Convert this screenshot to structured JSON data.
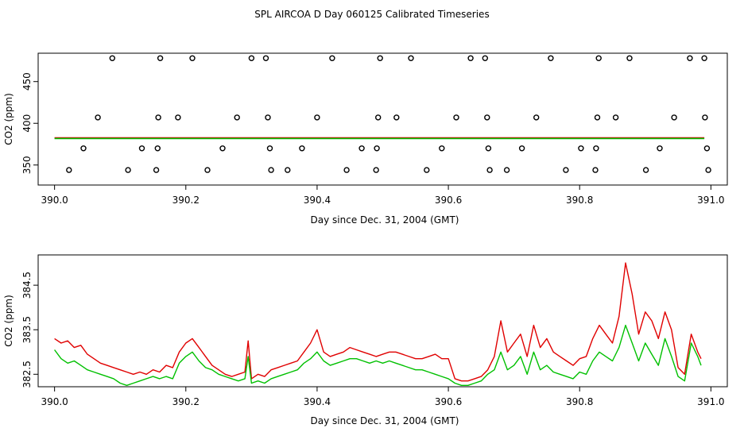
{
  "title": "SPL AIRCOA D  Day 060125  Calibrated Timeseries",
  "colors": {
    "red": "#e00000",
    "green": "#00c000",
    "axis": "#000000"
  },
  "chart_data": [
    {
      "type": "scatter",
      "name": "top-panel",
      "xlabel": "Day since Dec. 31, 2004 (GMT)",
      "ylabel": "CO2 (ppm)",
      "xlim": [
        389.975,
        391.025
      ],
      "ylim": [
        326,
        484
      ],
      "xticks": [
        390.0,
        390.2,
        390.4,
        390.6,
        390.8,
        391.0
      ],
      "xtick_labels": [
        "390.0",
        "390.2",
        "390.4",
        "390.6",
        "390.8",
        "391.0"
      ],
      "yticks": [
        350,
        400,
        450
      ],
      "ytick_labels": [
        "350",
        "400",
        "450"
      ],
      "series_line_red": {
        "name": "red",
        "x": [
          390.0,
          390.99
        ],
        "y": [
          382.6,
          382.6
        ]
      },
      "series_line_green": {
        "name": "green",
        "x": [
          390.0,
          390.99
        ],
        "y": [
          381.8,
          381.8
        ]
      },
      "points": [
        [
          390.088,
          478
        ],
        [
          390.161,
          478
        ],
        [
          390.21,
          478
        ],
        [
          390.3,
          478
        ],
        [
          390.322,
          478
        ],
        [
          390.423,
          478
        ],
        [
          390.496,
          478
        ],
        [
          390.543,
          478
        ],
        [
          390.634,
          478
        ],
        [
          390.656,
          478
        ],
        [
          390.756,
          478
        ],
        [
          390.829,
          478
        ],
        [
          390.876,
          478
        ],
        [
          390.968,
          478
        ],
        [
          390.99,
          478
        ],
        [
          390.066,
          407
        ],
        [
          390.158,
          407
        ],
        [
          390.188,
          407
        ],
        [
          390.278,
          407
        ],
        [
          390.325,
          407
        ],
        [
          390.4,
          407
        ],
        [
          390.493,
          407
        ],
        [
          390.521,
          407
        ],
        [
          390.612,
          407
        ],
        [
          390.659,
          407
        ],
        [
          390.734,
          407
        ],
        [
          390.827,
          407
        ],
        [
          390.855,
          407
        ],
        [
          390.944,
          407
        ],
        [
          390.991,
          407
        ],
        [
          390.044,
          370
        ],
        [
          390.133,
          370
        ],
        [
          390.157,
          370
        ],
        [
          390.256,
          370
        ],
        [
          390.328,
          370
        ],
        [
          390.377,
          370
        ],
        [
          390.468,
          370
        ],
        [
          390.491,
          370
        ],
        [
          390.59,
          370
        ],
        [
          390.661,
          370
        ],
        [
          390.712,
          370
        ],
        [
          390.802,
          370
        ],
        [
          390.825,
          370
        ],
        [
          390.922,
          370
        ],
        [
          390.994,
          370
        ],
        [
          390.022,
          344
        ],
        [
          390.112,
          344
        ],
        [
          390.155,
          344
        ],
        [
          390.233,
          344
        ],
        [
          390.33,
          344
        ],
        [
          390.355,
          344
        ],
        [
          390.445,
          344
        ],
        [
          390.49,
          344
        ],
        [
          390.567,
          344
        ],
        [
          390.663,
          344
        ],
        [
          390.689,
          344
        ],
        [
          390.779,
          344
        ],
        [
          390.824,
          344
        ],
        [
          390.901,
          344
        ],
        [
          390.996,
          344
        ]
      ]
    },
    {
      "type": "line",
      "name": "bottom-panel",
      "xlabel": "Day since Dec. 31, 2004 (GMT)",
      "ylabel": "CO2 (ppm)",
      "xlim": [
        389.975,
        391.025
      ],
      "ylim": [
        382.22,
        385.18
      ],
      "xticks": [
        390.0,
        390.2,
        390.4,
        390.6,
        390.8,
        391.0
      ],
      "xtick_labels": [
        "390.0",
        "390.2",
        "390.4",
        "390.6",
        "390.8",
        "391.0"
      ],
      "yticks": [
        382.5,
        383.5,
        384.5
      ],
      "ytick_labels": [
        "382.5",
        "383.5",
        "384.5"
      ],
      "series": [
        {
          "name": "red",
          "x": [
            390.0,
            390.01,
            390.02,
            390.03,
            390.04,
            390.05,
            390.06,
            390.07,
            390.08,
            390.09,
            390.1,
            390.11,
            390.12,
            390.13,
            390.14,
            390.15,
            390.16,
            390.17,
            390.18,
            390.19,
            390.2,
            390.21,
            390.22,
            390.23,
            390.24,
            390.25,
            390.26,
            390.27,
            390.28,
            390.29,
            390.295,
            390.3,
            390.31,
            390.32,
            390.33,
            390.34,
            390.35,
            390.36,
            390.37,
            390.38,
            390.39,
            390.4,
            390.41,
            390.42,
            390.43,
            390.44,
            390.45,
            390.46,
            390.47,
            390.48,
            390.49,
            390.5,
            390.51,
            390.52,
            390.53,
            390.54,
            390.55,
            390.56,
            390.57,
            390.58,
            390.59,
            390.6,
            390.61,
            390.62,
            390.63,
            390.64,
            390.65,
            390.66,
            390.67,
            390.68,
            390.69,
            390.7,
            390.71,
            390.72,
            390.73,
            390.74,
            390.75,
            390.76,
            390.77,
            390.78,
            390.79,
            390.8,
            390.81,
            390.82,
            390.83,
            390.84,
            390.85,
            390.86,
            390.87,
            390.88,
            390.89,
            390.9,
            390.91,
            390.92,
            390.93,
            390.94,
            390.95,
            390.96,
            390.97,
            390.98,
            390.985
          ],
          "y": [
            383.3,
            383.2,
            383.25,
            383.1,
            383.15,
            382.95,
            382.85,
            382.75,
            382.7,
            382.65,
            382.6,
            382.55,
            382.5,
            382.55,
            382.5,
            382.6,
            382.55,
            382.7,
            382.65,
            383.0,
            383.2,
            383.3,
            383.1,
            382.9,
            382.7,
            382.6,
            382.5,
            382.45,
            382.5,
            382.55,
            383.25,
            382.4,
            382.5,
            382.45,
            382.6,
            382.65,
            382.7,
            382.75,
            382.8,
            383.0,
            383.2,
            383.5,
            383.0,
            382.9,
            382.95,
            383.0,
            383.1,
            383.05,
            383.0,
            382.95,
            382.9,
            382.95,
            383.0,
            383.0,
            382.95,
            382.9,
            382.85,
            382.85,
            382.9,
            382.95,
            382.85,
            382.85,
            382.4,
            382.35,
            382.35,
            382.4,
            382.45,
            382.6,
            382.9,
            383.7,
            383.0,
            383.2,
            383.4,
            382.9,
            383.6,
            383.1,
            383.3,
            383.0,
            382.9,
            382.8,
            382.7,
            382.85,
            382.9,
            383.3,
            383.6,
            383.4,
            383.2,
            383.8,
            385.0,
            384.3,
            383.4,
            383.9,
            383.7,
            383.3,
            383.9,
            383.5,
            382.65,
            382.5,
            383.4,
            383.0,
            382.85
          ]
        },
        {
          "name": "green",
          "x": [
            390.0,
            390.01,
            390.02,
            390.03,
            390.04,
            390.05,
            390.06,
            390.07,
            390.08,
            390.09,
            390.1,
            390.11,
            390.12,
            390.13,
            390.14,
            390.15,
            390.16,
            390.17,
            390.18,
            390.19,
            390.2,
            390.21,
            390.22,
            390.23,
            390.24,
            390.25,
            390.26,
            390.27,
            390.28,
            390.29,
            390.295,
            390.3,
            390.31,
            390.32,
            390.33,
            390.34,
            390.35,
            390.36,
            390.37,
            390.38,
            390.39,
            390.4,
            390.41,
            390.42,
            390.43,
            390.44,
            390.45,
            390.46,
            390.47,
            390.48,
            390.49,
            390.5,
            390.51,
            390.52,
            390.53,
            390.54,
            390.55,
            390.56,
            390.57,
            390.58,
            390.59,
            390.6,
            390.61,
            390.62,
            390.63,
            390.64,
            390.65,
            390.66,
            390.67,
            390.68,
            390.69,
            390.7,
            390.71,
            390.72,
            390.73,
            390.74,
            390.75,
            390.76,
            390.77,
            390.78,
            390.79,
            390.8,
            390.81,
            390.82,
            390.83,
            390.84,
            390.85,
            390.86,
            390.87,
            390.88,
            390.89,
            390.9,
            390.91,
            390.92,
            390.93,
            390.94,
            390.95,
            390.96,
            390.97,
            390.98,
            390.985
          ],
          "y": [
            383.05,
            382.85,
            382.75,
            382.8,
            382.7,
            382.6,
            382.55,
            382.5,
            382.45,
            382.4,
            382.3,
            382.25,
            382.3,
            382.35,
            382.4,
            382.45,
            382.4,
            382.45,
            382.4,
            382.75,
            382.9,
            383.0,
            382.8,
            382.65,
            382.6,
            382.5,
            382.45,
            382.4,
            382.35,
            382.4,
            382.9,
            382.3,
            382.35,
            382.3,
            382.4,
            382.45,
            382.5,
            382.55,
            382.6,
            382.75,
            382.85,
            383.0,
            382.8,
            382.7,
            382.75,
            382.8,
            382.85,
            382.85,
            382.8,
            382.75,
            382.8,
            382.75,
            382.8,
            382.75,
            382.7,
            382.65,
            382.6,
            382.6,
            382.55,
            382.5,
            382.45,
            382.4,
            382.3,
            382.25,
            382.25,
            382.3,
            382.35,
            382.5,
            382.6,
            383.0,
            382.6,
            382.7,
            382.9,
            382.5,
            383.0,
            382.6,
            382.7,
            382.55,
            382.5,
            382.45,
            382.4,
            382.55,
            382.5,
            382.8,
            383.0,
            382.9,
            382.8,
            383.1,
            383.6,
            383.2,
            382.8,
            383.2,
            382.95,
            382.7,
            383.3,
            382.9,
            382.45,
            382.35,
            383.2,
            382.9,
            382.7
          ]
        }
      ]
    }
  ]
}
